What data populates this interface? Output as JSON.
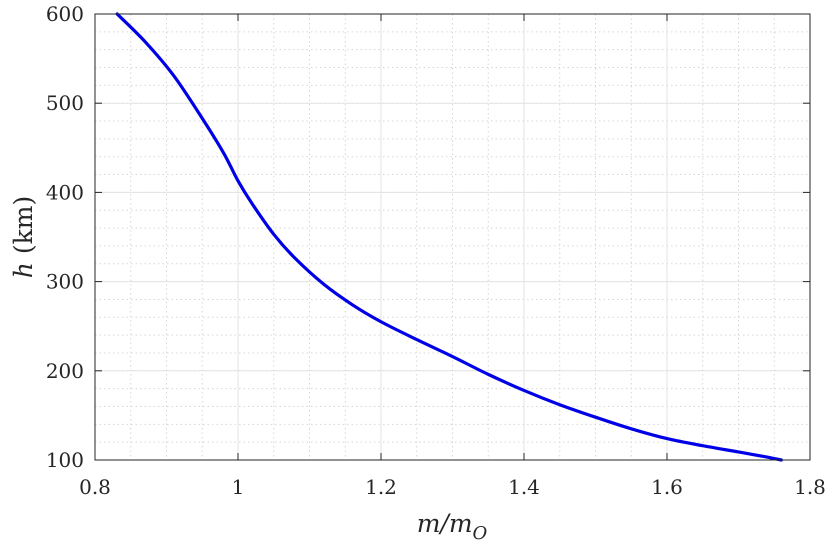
{
  "chart_data": {
    "type": "line",
    "title": "",
    "xlabel": {
      "main": "m/m",
      "sub": "O"
    },
    "ylabel": {
      "var": "h",
      "unit": " (km)"
    },
    "xlim": [
      0.8,
      1.8
    ],
    "ylim": [
      100,
      600
    ],
    "xticks": [
      "0.8",
      "1",
      "1.2",
      "1.4",
      "1.6",
      "1.8"
    ],
    "yticks": [
      "100",
      "200",
      "300",
      "400",
      "500",
      "600"
    ],
    "grid": true,
    "minor_grid": true,
    "line_color": "#0000e6",
    "series": [
      {
        "x": [
          0.831,
          0.87,
          0.91,
          0.95,
          0.98,
          1.0,
          1.02,
          1.05,
          1.08,
          1.12,
          1.16,
          1.2,
          1.25,
          1.3,
          1.35,
          1.4,
          1.45,
          1.5,
          1.55,
          1.6,
          1.65,
          1.7,
          1.735,
          1.76
        ],
        "y": [
          600,
          569,
          531,
          483,
          444,
          413,
          387,
          353,
          326,
          297,
          274,
          255,
          235,
          216,
          196,
          178,
          162,
          148,
          135,
          124,
          116,
          109,
          104,
          100
        ]
      }
    ]
  }
}
